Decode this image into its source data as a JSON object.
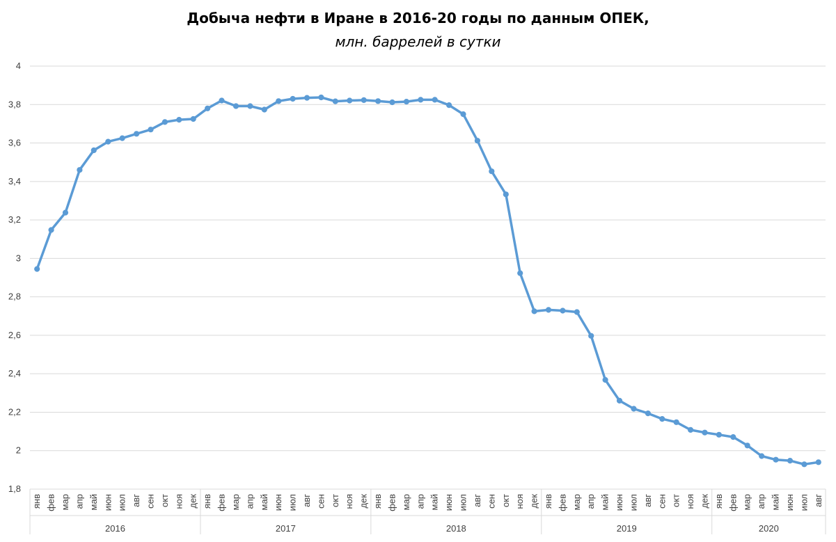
{
  "chart_data": {
    "type": "line",
    "title": "Добыча нефти в Иране в 2016-20 годы по данным ОПЕК,",
    "subtitle": "млн. баррелей в сутки",
    "ylim": [
      1.8,
      4
    ],
    "yticks": [
      "1,8",
      "2",
      "2,2",
      "2,4",
      "2,6",
      "2,8",
      "3",
      "3,2",
      "3,4",
      "3,6",
      "3,8",
      "4"
    ],
    "ytick_values": [
      1.8,
      2.0,
      2.2,
      2.4,
      2.6,
      2.8,
      3.0,
      3.2,
      3.4,
      3.6,
      3.8,
      4.0
    ],
    "grid": true,
    "color": "#5B9BD5",
    "years": [
      {
        "label": "2016",
        "months": [
          "янв",
          "фев",
          "мар",
          "апр",
          "май",
          "июн",
          "июл",
          "авг",
          "сен",
          "окт",
          "ноя",
          "дек"
        ]
      },
      {
        "label": "2017",
        "months": [
          "янв",
          "фев",
          "мар",
          "апр",
          "май",
          "июн",
          "июл",
          "авг",
          "сен",
          "окт",
          "ноя",
          "дек"
        ]
      },
      {
        "label": "2018",
        "months": [
          "янв",
          "фев",
          "мар",
          "апр",
          "май",
          "июн",
          "июл",
          "авг",
          "сен",
          "окт",
          "ноя",
          "дек"
        ]
      },
      {
        "label": "2019",
        "months": [
          "янв",
          "фев",
          "мар",
          "апр",
          "май",
          "июн",
          "июл",
          "авг",
          "сен",
          "окт",
          "ноя",
          "дек"
        ]
      },
      {
        "label": "2020",
        "months": [
          "янв",
          "фев",
          "мар",
          "апр",
          "май",
          "июн",
          "июл",
          "авг"
        ]
      }
    ],
    "values": [
      2.945,
      3.148,
      3.238,
      3.46,
      3.562,
      3.607,
      3.625,
      3.648,
      3.67,
      3.709,
      3.721,
      3.725,
      3.78,
      3.821,
      3.792,
      3.792,
      3.774,
      3.818,
      3.83,
      3.835,
      3.837,
      3.817,
      3.821,
      3.823,
      3.818,
      3.812,
      3.815,
      3.825,
      3.825,
      3.797,
      3.75,
      3.612,
      3.453,
      3.333,
      2.923,
      2.725,
      2.732,
      2.728,
      2.721,
      2.597,
      2.368,
      2.26,
      2.218,
      2.194,
      2.165,
      2.148,
      2.108,
      2.094,
      2.083,
      2.071,
      2.027,
      1.972,
      1.953,
      1.948,
      1.929,
      1.94
    ]
  }
}
